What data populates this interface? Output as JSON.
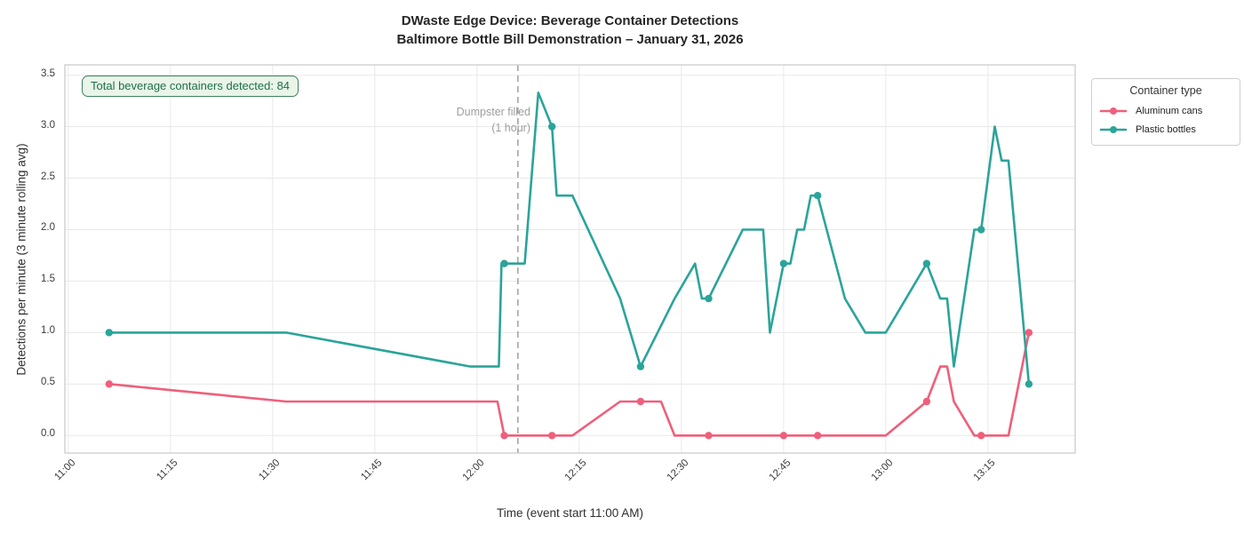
{
  "page": {
    "title_line1": "DWaste Edge Device: Beverage Container Detections",
    "title_line2": "Baltimore Bottle Bill Demonstration – January 31, 2026"
  },
  "badge": {
    "text": "Total beverage containers detected: 84"
  },
  "colors": {
    "aluminum": "#ef5f7b",
    "plastic": "#2ba49a",
    "grid": "#e9e9e9",
    "spine": "#cccccc",
    "dashed_line": "#a6a6a6",
    "annotation_text": "#9e9e9e",
    "badge_green": "#1d6f4d"
  },
  "chart_data": {
    "type": "line",
    "title": "DWaste Edge Device: Beverage Container Detections — Baltimore Bottle Bill Demonstration – January 31, 2026",
    "xlabel": "Time (event start 11:00 AM)",
    "ylabel": "Detections per minute (3 minute rolling avg)",
    "x_unit": "minutes after 11:00 AM",
    "xlim": [
      -0.5,
      147.8
    ],
    "ylim": [
      -0.17,
      3.6
    ],
    "grid": true,
    "x_ticks": [
      {
        "t": 0,
        "label": "11:00"
      },
      {
        "t": 15,
        "label": "11:15"
      },
      {
        "t": 30,
        "label": "11:30"
      },
      {
        "t": 45,
        "label": "11:45"
      },
      {
        "t": 60,
        "label": "12:00"
      },
      {
        "t": 75,
        "label": "12:15"
      },
      {
        "t": 90,
        "label": "12:30"
      },
      {
        "t": 105,
        "label": "12:45"
      },
      {
        "t": 120,
        "label": "13:00"
      },
      {
        "t": 135,
        "label": "13:15"
      }
    ],
    "y_ticks": [
      {
        "v": 0.0,
        "label": "0.0"
      },
      {
        "v": 0.5,
        "label": "0.5"
      },
      {
        "v": 1.0,
        "label": "1.0"
      },
      {
        "v": 1.5,
        "label": "1.5"
      },
      {
        "v": 2.0,
        "label": "2.0"
      },
      {
        "v": 2.5,
        "label": "2.5"
      },
      {
        "v": 3.0,
        "label": "3.0"
      },
      {
        "v": 3.5,
        "label": "3.5"
      }
    ],
    "annotation": {
      "t": 66,
      "label_line1": "Dumpster filled",
      "label_line2": "(1 hour)"
    },
    "legend": {
      "title": "Container type",
      "position": "outside top-right",
      "entries": [
        {
          "label": "Aluminum cans",
          "color": "#ef5f7b"
        },
        {
          "label": "Plastic bottles",
          "color": "#2ba49a"
        }
      ]
    },
    "series": [
      {
        "name": "Aluminum cans",
        "color": "#ef5f7b",
        "points": [
          [
            6,
            0.5
          ],
          [
            32,
            0.33
          ],
          [
            63,
            0.33
          ],
          [
            64,
            0
          ],
          [
            74,
            0
          ],
          [
            81,
            0.33
          ],
          [
            87,
            0.33
          ],
          [
            89,
            0
          ],
          [
            120,
            0
          ],
          [
            126,
            0.33
          ],
          [
            128,
            0.67
          ],
          [
            129,
            0.67
          ],
          [
            130,
            0.33
          ],
          [
            133,
            0
          ],
          [
            138,
            0
          ],
          [
            141,
            1.0
          ]
        ],
        "markers": [
          [
            6,
            0.5
          ],
          [
            64,
            0
          ],
          [
            71,
            0
          ],
          [
            84,
            0.33
          ],
          [
            94,
            0
          ],
          [
            105,
            0
          ],
          [
            110,
            0
          ],
          [
            126,
            0.33
          ],
          [
            134,
            0
          ],
          [
            141,
            1.0
          ]
        ]
      },
      {
        "name": "Plastic bottles",
        "color": "#2ba49a",
        "points": [
          [
            6,
            1.0
          ],
          [
            32,
            1.0
          ],
          [
            59,
            0.67
          ],
          [
            63.2,
            0.67
          ],
          [
            63.6,
            1.67
          ],
          [
            67,
            1.67
          ],
          [
            69,
            3.33
          ],
          [
            71,
            3.0
          ],
          [
            71.7,
            2.33
          ],
          [
            74,
            2.33
          ],
          [
            81,
            1.33
          ],
          [
            84,
            0.67
          ],
          [
            89,
            1.33
          ],
          [
            92,
            1.67
          ],
          [
            93,
            1.33
          ],
          [
            94,
            1.33
          ],
          [
            99,
            2.0
          ],
          [
            102,
            2.0
          ],
          [
            103,
            1.0
          ],
          [
            105,
            1.67
          ],
          [
            106,
            1.67
          ],
          [
            107,
            2.0
          ],
          [
            108,
            2.0
          ],
          [
            109,
            2.33
          ],
          [
            110,
            2.33
          ],
          [
            114,
            1.33
          ],
          [
            117,
            1.0
          ],
          [
            120,
            1.0
          ],
          [
            126,
            1.67
          ],
          [
            128,
            1.33
          ],
          [
            129,
            1.33
          ],
          [
            130,
            0.67
          ],
          [
            133,
            2.0
          ],
          [
            134,
            2.0
          ],
          [
            136,
            3.0
          ],
          [
            137,
            2.67
          ],
          [
            138,
            2.67
          ],
          [
            141,
            0.5
          ]
        ],
        "markers": [
          [
            6,
            1.0
          ],
          [
            64,
            1.67
          ],
          [
            71,
            3.0
          ],
          [
            84,
            0.67
          ],
          [
            94,
            1.33
          ],
          [
            105,
            1.67
          ],
          [
            110,
            2.33
          ],
          [
            126,
            1.67
          ],
          [
            134,
            2.0
          ],
          [
            141,
            0.5
          ]
        ]
      }
    ]
  }
}
